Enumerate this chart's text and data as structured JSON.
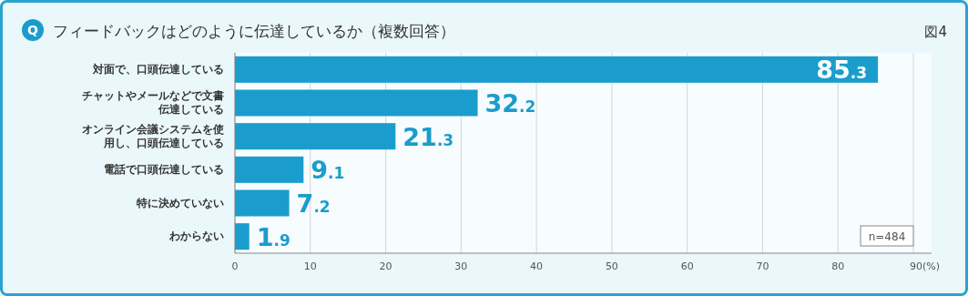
{
  "chart_data": {
    "type": "bar",
    "orientation": "horizontal",
    "title": "フィードバックはどのように伝達しているか（複数回答）",
    "categories": [
      "対面で、口頭伝達している",
      "チャットやメールなどで文書伝達している",
      "オンライン会議システムを使用し、口頭伝達している",
      "電話で口頭伝達している",
      "特に決めていない",
      "わからない"
    ],
    "values": [
      85.3,
      32.2,
      21.3,
      9.1,
      7.2,
      1.9
    ],
    "color": "#1a9dcc",
    "data_labels": true,
    "xlim": [
      0,
      90
    ],
    "xticks": [
      0,
      10,
      20,
      30,
      40,
      50,
      60,
      70,
      80,
      {
        "value": 90,
        "label": "90(%)"
      }
    ],
    "grid": "x",
    "annotations": [
      "Q",
      "図4",
      "n=484"
    ]
  }
}
